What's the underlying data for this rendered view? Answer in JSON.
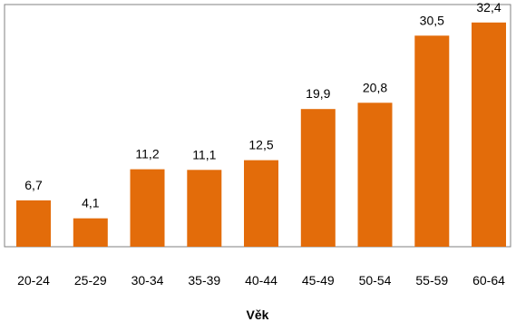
{
  "chart_data": {
    "type": "bar",
    "categories": [
      "20-24",
      "25-29",
      "30-34",
      "35-39",
      "40-44",
      "45-49",
      "50-54",
      "55-59",
      "60-64"
    ],
    "values": [
      6.7,
      4.1,
      11.2,
      11.1,
      12.5,
      19.9,
      20.8,
      30.5,
      32.4
    ],
    "data_labels": [
      "6,7",
      "4,1",
      "11,2",
      "11,1",
      "12,5",
      "19,9",
      "20,8",
      "30,5",
      "32,4"
    ],
    "title": "",
    "xlabel": "Věk",
    "ylabel": "",
    "ylim": [
      0,
      35
    ],
    "grid": false,
    "legend": "none",
    "bar_color": "#E36C0A",
    "axis_color": "#808080"
  }
}
